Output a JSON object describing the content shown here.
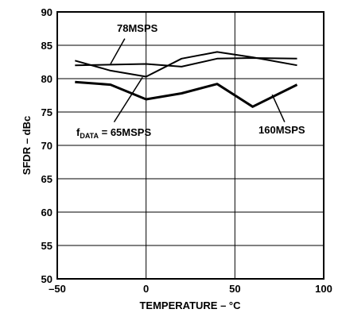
{
  "chart_data": {
    "type": "line",
    "title": "",
    "xlabel": "TEMPERATURE – °C",
    "ylabel": "SFDR – dBc",
    "xlim": [
      -50,
      100
    ],
    "ylim": [
      50,
      90
    ],
    "xticks": [
      -50,
      0,
      50,
      100
    ],
    "yticks": [
      50,
      55,
      60,
      65,
      70,
      75,
      80,
      85,
      90
    ],
    "xtick_labels": [
      "–50",
      "0",
      "50",
      "100"
    ],
    "ytick_labels": [
      "50",
      "55",
      "60",
      "65",
      "70",
      "75",
      "80",
      "85",
      "90"
    ],
    "grid": true,
    "legend": "none",
    "series": [
      {
        "x": [
          -40,
          -20,
          0,
          20,
          40,
          60,
          85
        ],
        "values": [
          82.7,
          81.2,
          80.3,
          83.0,
          84.0,
          83.2,
          82.0
        ]
      },
      {
        "x": [
          -40,
          -20,
          0,
          20,
          40,
          60,
          85
        ],
        "values": [
          82.0,
          82.1,
          82.2,
          81.8,
          83.0,
          83.1,
          83.0
        ]
      },
      {
        "x": [
          -40,
          -20,
          0,
          20,
          40,
          60,
          85
        ],
        "values": [
          79.5,
          79.1,
          76.9,
          77.8,
          79.2,
          75.8,
          79.1
        ]
      }
    ],
    "annotations": [
      {
        "id": "78msps",
        "text": "78MSPS",
        "line_from": [
          -12,
          86.0
        ],
        "line_to": [
          -20,
          82.2
        ]
      },
      {
        "id": "65msps",
        "text_main": "f",
        "text_sub": "DATA",
        "text_rest": " = 65MSPS",
        "line_from": [
          -18,
          73.5
        ],
        "line_to": [
          -2,
          80.2
        ]
      },
      {
        "id": "160msps",
        "text": "160MSPS",
        "line_from": [
          78,
          73.5
        ],
        "line_to": [
          71,
          77.6
        ]
      }
    ]
  }
}
